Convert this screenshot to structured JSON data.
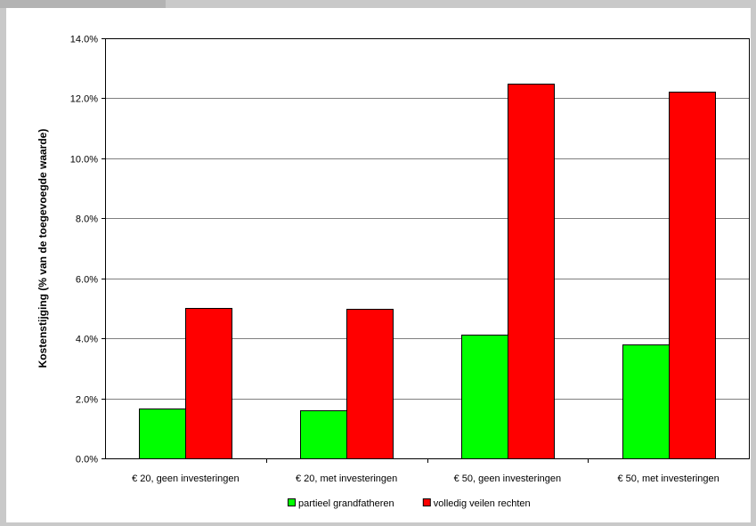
{
  "chart_data": {
    "type": "bar",
    "title": "",
    "xlabel": "",
    "ylabel": "Kostenstijging (% van de toegevoegde waarde)",
    "ylim": [
      0,
      0.14
    ],
    "yticks": [
      "0.0%",
      "2.0%",
      "4.0%",
      "6.0%",
      "8.0%",
      "10.0%",
      "12.0%",
      "14.0%"
    ],
    "grid": true,
    "legend_position": "bottom",
    "categories": [
      "€ 20, geen investeringen",
      "€ 20, met investeringen",
      "€ 50, geen investeringen",
      "€ 50, met investeringen"
    ],
    "series": [
      {
        "name": "partieel grandfatheren",
        "color": "#00ff00",
        "values": [
          0.0165,
          0.016,
          0.0413,
          0.038
        ]
      },
      {
        "name": "volledig veilen rechten",
        "color": "#ff0000",
        "values": [
          0.05,
          0.0497,
          0.125,
          0.1222
        ]
      }
    ]
  }
}
